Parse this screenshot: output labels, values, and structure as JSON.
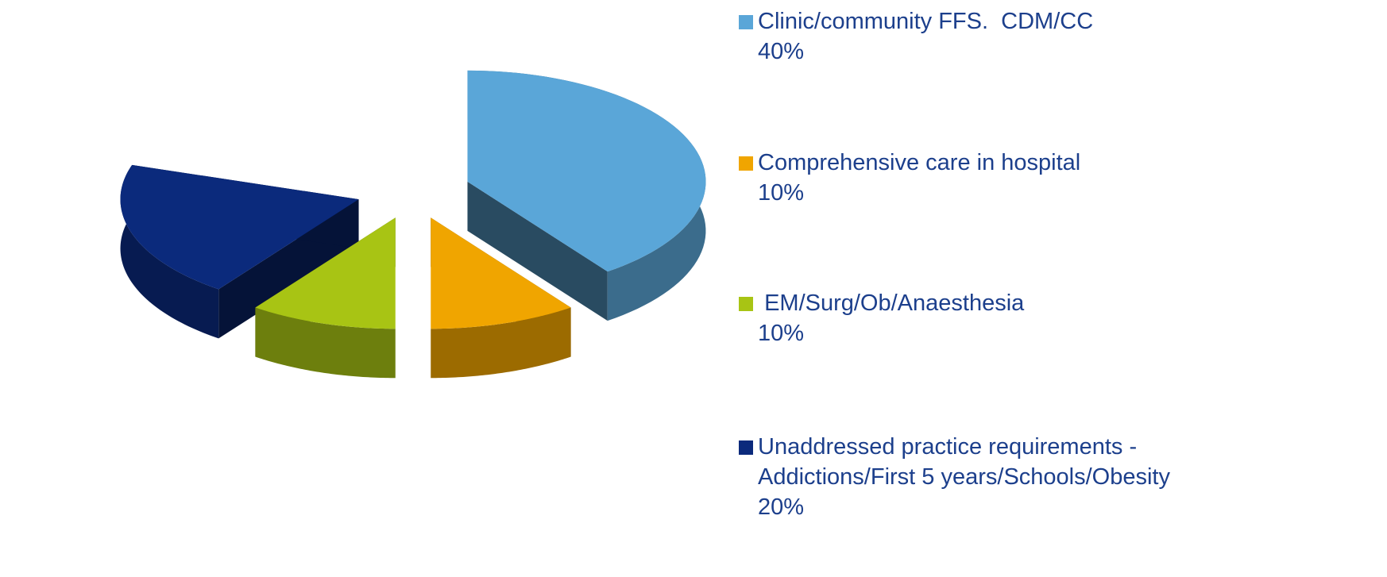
{
  "chart_data": {
    "type": "pie3d",
    "categories": [
      "Clinic/community FFS.  CDM/CC",
      "Comprehensive care in hospital",
      " EM/Surg/Ob/Anaesthesia",
      "Unaddressed practice requirements - Addictions/First 5 years/Schools/Obesity"
    ],
    "values": [
      40,
      10,
      10,
      20
    ],
    "value_labels": [
      "40%",
      "10%",
      "10%",
      "20%"
    ],
    "colors": [
      "#5aa6d8",
      "#f0a500",
      "#a8c414",
      "#0b2a7c"
    ]
  }
}
